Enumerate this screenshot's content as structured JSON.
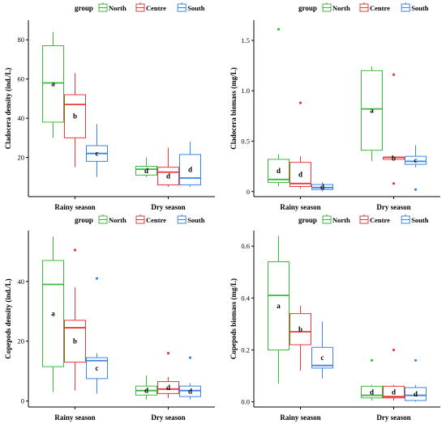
{
  "legend": {
    "title": "group",
    "entries": [
      "North",
      "Centre",
      "South"
    ],
    "colors": [
      "#3cb83c",
      "#e8393b",
      "#3a86e8"
    ]
  },
  "chart_data": [
    {
      "type": "box",
      "ylabel": "Cladocera density (ind./L)",
      "categories": [
        "Rainy season",
        "Dry season"
      ],
      "ylim": [
        0,
        90
      ],
      "yticks": [
        20,
        40,
        60,
        80
      ],
      "legend_position": "top",
      "series": [
        {
          "name": "North",
          "boxes": [
            {
              "min": 30,
              "q1": 38,
              "median": 58,
              "q3": 77,
              "max": 84,
              "outliers": [],
              "label": "a"
            },
            {
              "min": 10,
              "q1": 11,
              "median": 14,
              "q3": 15.5,
              "max": 20,
              "outliers": [],
              "label": "d"
            }
          ]
        },
        {
          "name": "Centre",
          "boxes": [
            {
              "min": 15,
              "q1": 30,
              "median": 47,
              "q3": 52,
              "max": 63,
              "outliers": [],
              "label": "b"
            },
            {
              "min": 5,
              "q1": 6,
              "median": 12.5,
              "q3": 15,
              "max": 25,
              "outliers": [],
              "label": "d"
            }
          ]
        },
        {
          "name": "South",
          "boxes": [
            {
              "min": 10,
              "q1": 18,
              "median": 22,
              "q3": 26,
              "max": 37,
              "outliers": [],
              "label": "c"
            },
            {
              "min": 5,
              "q1": 6,
              "median": 9.5,
              "q3": 21.5,
              "max": 28,
              "outliers": [],
              "label": "d"
            }
          ]
        }
      ]
    },
    {
      "type": "box",
      "ylabel": "Cladocera biomass (mg/L)",
      "categories": [
        "Rainy season",
        "Dry season"
      ],
      "ylim": [
        -0.05,
        1.7
      ],
      "yticks": [
        0,
        0.5,
        1.0,
        1.5
      ],
      "ytick_labels": [
        "0",
        "0.5",
        "1.0",
        "1.5"
      ],
      "legend_position": "top",
      "series": [
        {
          "name": "North",
          "boxes": [
            {
              "min": 0.05,
              "q1": 0.09,
              "median": 0.12,
              "q3": 0.32,
              "max": 0.37,
              "outliers": [
                1.61
              ],
              "label": "d"
            },
            {
              "min": 0.3,
              "q1": 0.41,
              "median": 0.82,
              "q3": 1.2,
              "max": 1.24,
              "outliers": [],
              "label": "a"
            }
          ]
        },
        {
          "name": "Centre",
          "boxes": [
            {
              "min": 0.03,
              "q1": 0.05,
              "median": 0.08,
              "q3": 0.29,
              "max": 0.35,
              "outliers": [
                0.88
              ],
              "label": "d"
            },
            {
              "min": 0.32,
              "q1": 0.32,
              "median": 0.34,
              "q3": 0.34,
              "max": 0.35,
              "outliers": [
                1.16,
                0.08
              ],
              "label": "b"
            }
          ]
        },
        {
          "name": "South",
          "boxes": [
            {
              "min": 0.0,
              "q1": 0.02,
              "median": 0.04,
              "q3": 0.07,
              "max": 0.09,
              "outliers": [],
              "label": "d"
            },
            {
              "min": 0.24,
              "q1": 0.27,
              "median": 0.3,
              "q3": 0.35,
              "max": 0.46,
              "outliers": [
                0.02
              ],
              "label": "c"
            }
          ]
        }
      ]
    },
    {
      "type": "box",
      "ylabel": "Copepods density (ind./L)",
      "categories": [
        "Rainy season",
        "Dry season"
      ],
      "ylim": [
        -2,
        57
      ],
      "yticks": [
        0,
        20,
        40
      ],
      "legend_position": "top",
      "series": [
        {
          "name": "North",
          "boxes": [
            {
              "min": 3,
              "q1": 11.5,
              "median": 39,
              "q3": 47,
              "max": 55,
              "outliers": [],
              "label": "a"
            },
            {
              "min": 0.5,
              "q1": 2,
              "median": 3.5,
              "q3": 5,
              "max": 8.5,
              "outliers": [],
              "label": "d"
            }
          ]
        },
        {
          "name": "Centre",
          "boxes": [
            {
              "min": 3.5,
              "q1": 13,
              "median": 24.5,
              "q3": 27,
              "max": 38,
              "outliers": [
                50.5
              ],
              "label": "b"
            },
            {
              "min": 1,
              "q1": 2.5,
              "median": 4,
              "q3": 6.5,
              "max": 8,
              "outliers": [
                16
              ],
              "label": "d"
            }
          ]
        },
        {
          "name": "South",
          "boxes": [
            {
              "min": 2.5,
              "q1": 7.5,
              "median": 13.5,
              "q3": 14.5,
              "max": 16,
              "outliers": [
                41
              ],
              "label": "c"
            },
            {
              "min": 0.5,
              "q1": 1.5,
              "median": 3.5,
              "q3": 5,
              "max": 6,
              "outliers": [
                14.5
              ],
              "label": "d"
            }
          ]
        }
      ]
    },
    {
      "type": "box",
      "ylabel": "Copepods biomass (mg/L)",
      "categories": [
        "Rainy season",
        "Dry season"
      ],
      "ylim": [
        -0.02,
        0.66
      ],
      "yticks": [
        0.0,
        0.2,
        0.4,
        0.6
      ],
      "ytick_labels": [
        "0.0",
        "0.2",
        "0.4",
        "0.6"
      ],
      "legend_position": "top",
      "series": [
        {
          "name": "North",
          "boxes": [
            {
              "min": 0.07,
              "q1": 0.2,
              "median": 0.41,
              "q3": 0.54,
              "max": 0.64,
              "outliers": [],
              "label": "a"
            },
            {
              "min": 0.005,
              "q1": 0.015,
              "median": 0.025,
              "q3": 0.06,
              "max": 0.065,
              "outliers": [
                0.16
              ],
              "label": "d"
            }
          ]
        },
        {
          "name": "Centre",
          "boxes": [
            {
              "min": 0.12,
              "q1": 0.22,
              "median": 0.27,
              "q3": 0.34,
              "max": 0.37,
              "outliers": [],
              "label": "b"
            },
            {
              "min": 0.005,
              "q1": 0.015,
              "median": 0.02,
              "q3": 0.06,
              "max": 0.065,
              "outliers": [
                0.2
              ],
              "label": "d"
            }
          ]
        },
        {
          "name": "South",
          "boxes": [
            {
              "min": 0.09,
              "q1": 0.13,
              "median": 0.14,
              "q3": 0.21,
              "max": 0.31,
              "outliers": [],
              "label": "c"
            },
            {
              "min": 0.0,
              "q1": 0.005,
              "median": 0.025,
              "q3": 0.055,
              "max": 0.065,
              "outliers": [
                0.16
              ],
              "label": "d"
            }
          ]
        }
      ]
    }
  ]
}
